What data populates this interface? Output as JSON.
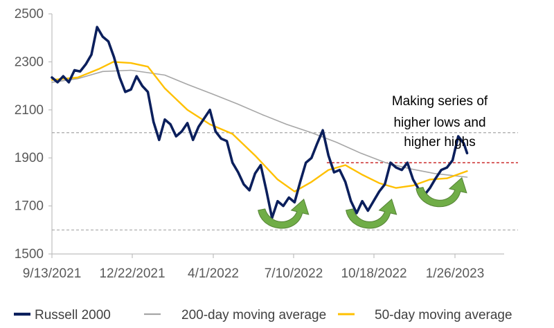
{
  "chart_data": {
    "type": "line",
    "title": "",
    "xlabel": "",
    "ylabel": "",
    "ylim": [
      1500,
      2500
    ],
    "y_ticks": [
      "1500",
      "1700",
      "1900",
      "2100",
      "2300",
      "2500"
    ],
    "y_tick_values": [
      1500,
      1700,
      1900,
      2100,
      2300,
      2500
    ],
    "x_ticks": [
      "9/13/2021",
      "12/22/2021",
      "4/1/2022",
      "7/10/2022",
      "10/18/2022",
      "1/26/2023"
    ],
    "x_range": [
      "9/13/2021",
      "2/10/2023"
    ],
    "grid": false,
    "legend_position": "bottom",
    "annotation": [
      "Making series of",
      "higher lows and",
      "higher highs"
    ],
    "reference_lines": [
      {
        "value": 2005,
        "style": "dashed",
        "color": "#a6a6a6"
      },
      {
        "value": 1880,
        "style": "dashed",
        "color": "#c00000"
      },
      {
        "value": 1600,
        "style": "dashed",
        "color": "#a6a6a6"
      }
    ],
    "markers": [
      {
        "type": "curved-arrow",
        "date": "6/25/2022",
        "value": 1630
      },
      {
        "type": "curved-arrow",
        "date": "10/12/2022",
        "value": 1630
      },
      {
        "type": "curved-arrow",
        "date": "1/7/2023",
        "value": 1720
      }
    ],
    "series": [
      {
        "name": "Russell 2000",
        "color": "#0b1f5c",
        "points": [
          [
            "9/13/2021",
            2235
          ],
          [
            "9/20/2021",
            2215
          ],
          [
            "9/27/2021",
            2240
          ],
          [
            "10/4/2021",
            2215
          ],
          [
            "10/11/2021",
            2265
          ],
          [
            "10/18/2021",
            2260
          ],
          [
            "10/25/2021",
            2290
          ],
          [
            "11/1/2021",
            2330
          ],
          [
            "11/8/2021",
            2445
          ],
          [
            "11/15/2021",
            2405
          ],
          [
            "11/22/2021",
            2385
          ],
          [
            "11/29/2021",
            2320
          ],
          [
            "12/6/2021",
            2235
          ],
          [
            "12/13/2021",
            2175
          ],
          [
            "12/20/2021",
            2185
          ],
          [
            "12/27/2021",
            2240
          ],
          [
            "1/3/2022",
            2200
          ],
          [
            "1/10/2022",
            2175
          ],
          [
            "1/17/2022",
            2050
          ],
          [
            "1/24/2022",
            1975
          ],
          [
            "1/31/2022",
            2060
          ],
          [
            "2/7/2022",
            2040
          ],
          [
            "2/14/2022",
            1990
          ],
          [
            "2/21/2022",
            2010
          ],
          [
            "2/28/2022",
            2045
          ],
          [
            "3/7/2022",
            1975
          ],
          [
            "3/14/2022",
            2030
          ],
          [
            "3/21/2022",
            2065
          ],
          [
            "3/28/2022",
            2100
          ],
          [
            "4/4/2022",
            2010
          ],
          [
            "4/11/2022",
            1980
          ],
          [
            "4/18/2022",
            1970
          ],
          [
            "4/25/2022",
            1880
          ],
          [
            "5/2/2022",
            1840
          ],
          [
            "5/9/2022",
            1790
          ],
          [
            "5/16/2022",
            1765
          ],
          [
            "5/23/2022",
            1835
          ],
          [
            "5/30/2022",
            1870
          ],
          [
            "6/6/2022",
            1765
          ],
          [
            "6/13/2022",
            1650
          ],
          [
            "6/20/2022",
            1720
          ],
          [
            "6/27/2022",
            1700
          ],
          [
            "7/4/2022",
            1735
          ],
          [
            "7/11/2022",
            1715
          ],
          [
            "7/18/2022",
            1800
          ],
          [
            "7/25/2022",
            1880
          ],
          [
            "8/1/2022",
            1900
          ],
          [
            "8/8/2022",
            1960
          ],
          [
            "8/15/2022",
            2015
          ],
          [
            "8/22/2022",
            1910
          ],
          [
            "8/29/2022",
            1840
          ],
          [
            "9/5/2022",
            1850
          ],
          [
            "9/12/2022",
            1800
          ],
          [
            "9/19/2022",
            1720
          ],
          [
            "9/26/2022",
            1670
          ],
          [
            "10/3/2022",
            1720
          ],
          [
            "10/10/2022",
            1680
          ],
          [
            "10/17/2022",
            1720
          ],
          [
            "10/24/2022",
            1760
          ],
          [
            "10/31/2022",
            1790
          ],
          [
            "11/7/2022",
            1880
          ],
          [
            "11/14/2022",
            1860
          ],
          [
            "11/21/2022",
            1850
          ],
          [
            "11/28/2022",
            1880
          ],
          [
            "12/5/2022",
            1810
          ],
          [
            "12/12/2022",
            1770
          ],
          [
            "12/19/2022",
            1745
          ],
          [
            "12/26/2022",
            1775
          ],
          [
            "1/2/2023",
            1815
          ],
          [
            "1/9/2023",
            1850
          ],
          [
            "1/16/2023",
            1860
          ],
          [
            "1/23/2023",
            1890
          ],
          [
            "1/30/2023",
            1990
          ],
          [
            "2/6/2023",
            1960
          ],
          [
            "2/10/2023",
            1920
          ]
        ]
      },
      {
        "name": "200-day moving average",
        "color": "#a6a6a6",
        "points": [
          [
            "9/13/2021",
            2215
          ],
          [
            "10/15/2021",
            2230
          ],
          [
            "11/15/2021",
            2260
          ],
          [
            "12/20/2021",
            2265
          ],
          [
            "1/31/2022",
            2245
          ],
          [
            "3/1/2022",
            2205
          ],
          [
            "4/1/2022",
            2165
          ],
          [
            "5/1/2022",
            2125
          ],
          [
            "6/1/2022",
            2080
          ],
          [
            "7/1/2022",
            2040
          ],
          [
            "8/1/2022",
            2005
          ],
          [
            "9/1/2022",
            1965
          ],
          [
            "10/1/2022",
            1920
          ],
          [
            "11/1/2022",
            1880
          ],
          [
            "12/1/2022",
            1855
          ],
          [
            "1/1/2023",
            1835
          ],
          [
            "2/10/2023",
            1820
          ]
        ]
      },
      {
        "name": "50-day moving average",
        "color": "#ffc000",
        "points": [
          [
            "9/13/2021",
            2225
          ],
          [
            "10/15/2021",
            2235
          ],
          [
            "11/10/2021",
            2270
          ],
          [
            "11/28/2021",
            2300
          ],
          [
            "12/20/2021",
            2295
          ],
          [
            "1/10/2022",
            2280
          ],
          [
            "1/31/2022",
            2190
          ],
          [
            "2/28/2022",
            2100
          ],
          [
            "3/28/2022",
            2040
          ],
          [
            "4/25/2022",
            2000
          ],
          [
            "5/23/2022",
            1910
          ],
          [
            "6/20/2022",
            1810
          ],
          [
            "7/11/2022",
            1760
          ],
          [
            "8/1/2022",
            1800
          ],
          [
            "8/22/2022",
            1850
          ],
          [
            "9/12/2022",
            1870
          ],
          [
            "10/3/2022",
            1830
          ],
          [
            "10/24/2022",
            1795
          ],
          [
            "11/14/2022",
            1775
          ],
          [
            "12/5/2022",
            1785
          ],
          [
            "12/26/2022",
            1810
          ],
          [
            "1/16/2023",
            1815
          ],
          [
            "2/10/2023",
            1845
          ]
        ]
      }
    ]
  }
}
